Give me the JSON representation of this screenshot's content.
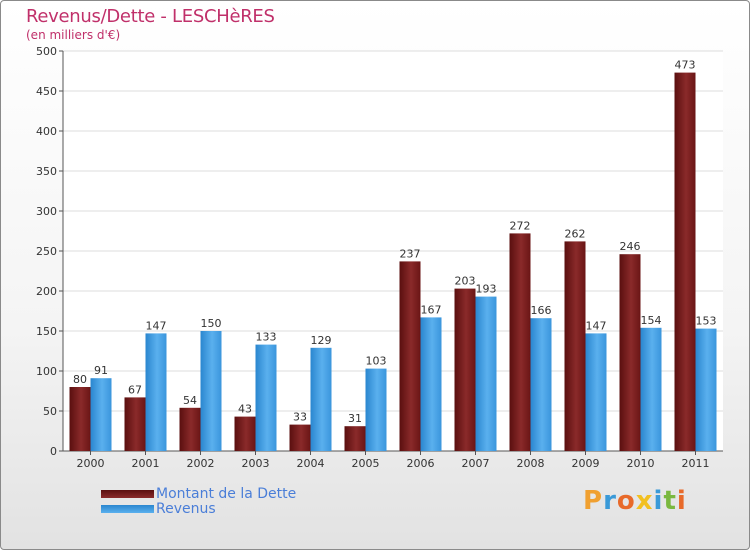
{
  "header": {
    "title": "Revenus/Dette - LESCHèRES",
    "subtitle": "(en milliers d'€)"
  },
  "legend": {
    "items": [
      {
        "label": "Montant de la Dette",
        "color": "#7a1a1a"
      },
      {
        "label": "Revenus",
        "color": "#3d9be0"
      }
    ]
  },
  "logo": {
    "letters": [
      "P",
      "r",
      "o",
      "x",
      "i",
      "t",
      "i"
    ]
  },
  "chart_data": {
    "type": "bar",
    "title": "Revenus/Dette - LESCHèRES",
    "ylabel": "(en milliers d'€)",
    "xlabel": "",
    "ylim": [
      0,
      500
    ],
    "yticks": [
      0,
      50,
      100,
      150,
      200,
      250,
      300,
      350,
      400,
      450,
      500
    ],
    "grid": true,
    "legend_position": "bottom-left",
    "categories": [
      "2000",
      "2001",
      "2002",
      "2003",
      "2004",
      "2005",
      "2006",
      "2007",
      "2008",
      "2009",
      "2010",
      "2011"
    ],
    "series": [
      {
        "name": "Montant de la Dette",
        "values": [
          80,
          67,
          54,
          43,
          33,
          31,
          237,
          203,
          272,
          262,
          246,
          473
        ],
        "color": "#7a1a1a"
      },
      {
        "name": "Revenus",
        "values": [
          91,
          147,
          150,
          133,
          129,
          103,
          167,
          193,
          166,
          147,
          154,
          153
        ],
        "color": "#3d9be0"
      }
    ]
  }
}
